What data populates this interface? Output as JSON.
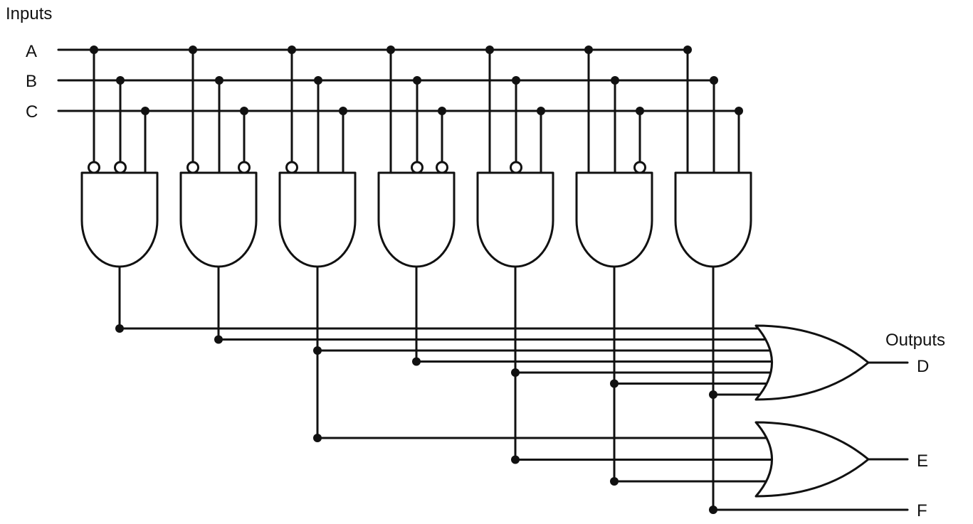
{
  "title": "Inputs",
  "outputs_title": "Outputs",
  "colors": {
    "ink": "#111111",
    "background": "#ffffff"
  },
  "inputs": [
    {
      "id": "A",
      "label": "A"
    },
    {
      "id": "B",
      "label": "B"
    },
    {
      "id": "C",
      "label": "C"
    }
  ],
  "and_gates": [
    {
      "id": "and1",
      "inputs": [
        "A",
        "B",
        "C"
      ],
      "inverted": [
        true,
        true,
        false
      ]
    },
    {
      "id": "and2",
      "inputs": [
        "A",
        "B",
        "C"
      ],
      "inverted": [
        true,
        false,
        true
      ]
    },
    {
      "id": "and3",
      "inputs": [
        "A",
        "B",
        "C"
      ],
      "inverted": [
        true,
        false,
        false
      ]
    },
    {
      "id": "and4",
      "inputs": [
        "A",
        "B",
        "C"
      ],
      "inverted": [
        false,
        true,
        true
      ]
    },
    {
      "id": "and5",
      "inputs": [
        "A",
        "B",
        "C"
      ],
      "inverted": [
        false,
        true,
        false
      ]
    },
    {
      "id": "and6",
      "inputs": [
        "A",
        "B",
        "C"
      ],
      "inverted": [
        false,
        false,
        true
      ]
    },
    {
      "id": "and7",
      "inputs": [
        "A",
        "B",
        "C"
      ],
      "inverted": [
        false,
        false,
        false
      ]
    }
  ],
  "or_gates": [
    {
      "id": "orD",
      "output": "D",
      "inputs": [
        "and1",
        "and2",
        "and3",
        "and4",
        "and5",
        "and6",
        "and7"
      ]
    },
    {
      "id": "orE",
      "output": "E",
      "inputs": [
        "and3",
        "and5",
        "and6"
      ]
    }
  ],
  "outputs": [
    {
      "id": "D",
      "label": "D",
      "from": "orD"
    },
    {
      "id": "E",
      "label": "E",
      "from": "orE"
    },
    {
      "id": "F",
      "label": "F",
      "from": "and7"
    }
  ]
}
